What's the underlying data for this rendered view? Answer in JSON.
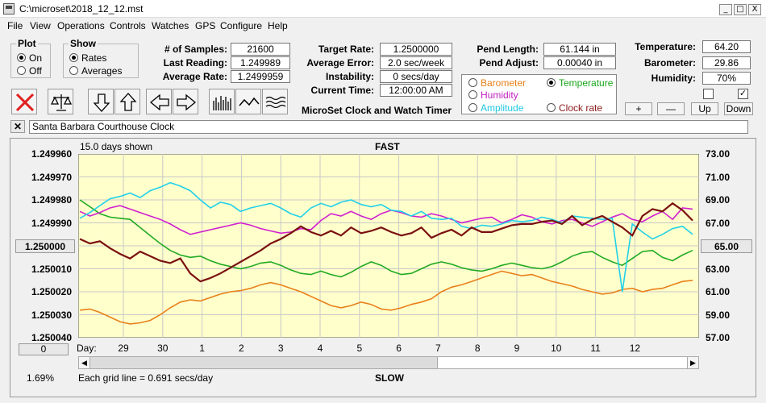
{
  "title": "C:\\microset\\2018_12_12.mst",
  "window_buttons": [
    "_",
    "□",
    "X"
  ],
  "menu": [
    "File",
    "View",
    "Operations",
    "Controls",
    "Watches",
    "GPS",
    "Configure",
    "Help"
  ],
  "plot_group": {
    "title": "Plot",
    "options": [
      {
        "label": "On",
        "checked": true
      },
      {
        "label": "Off",
        "checked": false
      }
    ]
  },
  "show_group": {
    "title": "Show",
    "options": [
      {
        "label": "Rates",
        "checked": true
      },
      {
        "label": "Averages",
        "checked": false
      }
    ]
  },
  "stats": [
    {
      "label": "# of Samples:",
      "value": "21600"
    },
    {
      "label": "Last Reading:",
      "value": "1.249989"
    },
    {
      "label": "Average Rate:",
      "value": "1.2499959"
    }
  ],
  "rates": [
    {
      "label": "Target Rate:",
      "value": "1.2500000"
    },
    {
      "label": "Average Error:",
      "value": "2.0 sec/week"
    },
    {
      "label": "Instability:",
      "value": "0 secs/day"
    },
    {
      "label": "Current Time:",
      "value": "12:00:00 AM"
    }
  ],
  "app_caption": "MicroSet Clock and Watch Timer",
  "pendulum": [
    {
      "label": "Pend Length:",
      "value": "61.144 in"
    },
    {
      "label": "Pend Adjust:",
      "value": "0.00040 in"
    }
  ],
  "sensor_radios": [
    {
      "label": "Barometer",
      "checked": false,
      "color": "#e8801a"
    },
    {
      "label": "Temperature",
      "checked": true,
      "color": "#1aa61a"
    },
    {
      "label": "Humidity",
      "checked": false,
      "color": "#c020c0"
    },
    {
      "label": "Clock rate",
      "checked": false,
      "color": "#8b1a1a"
    },
    {
      "label": "Amplitude",
      "checked": false,
      "color": "#20c8e0"
    }
  ],
  "env": [
    {
      "label": "Temperature:",
      "value": "64.20"
    },
    {
      "label": "Barometer:",
      "value": "29.86"
    },
    {
      "label": "Humidity:",
      "value": "70%"
    }
  ],
  "checkboxes": [
    {
      "checked": false
    },
    {
      "checked": true
    }
  ],
  "env_buttons": [
    "+",
    "—",
    "Up",
    "Down"
  ],
  "clock_name": "Santa Barbara Courthouse Clock",
  "chart_data": {
    "type": "line",
    "days_shown": "15.0 days shown",
    "top_label": "FAST",
    "bottom_label": "SLOW",
    "grid_note": "Each grid line = 0.691 secs/day",
    "percent": "1.69%",
    "x_prefix": "Day:",
    "x_ticks": [
      "29",
      "30",
      "1",
      "2",
      "3",
      "4",
      "5",
      "6",
      "7",
      "8",
      "9",
      "10",
      "11",
      "12"
    ],
    "left_axis": [
      "1.249960",
      "1.249970",
      "1.249980",
      "1.249990",
      "1.250000",
      "1.250010",
      "1.250020",
      "1.250030",
      "1.250040"
    ],
    "right_axis": [
      "73.00",
      "71.00",
      "69.00",
      "67.00",
      "65.00",
      "63.00",
      "61.00",
      "59.00",
      "57.00"
    ],
    "left_button": "0",
    "ylim_left": [
      1.24996,
      1.25004
    ],
    "ylim_right": [
      57,
      73
    ],
    "series": [
      {
        "name": "Barometer",
        "color": "#e8801a",
        "width": 1.6,
        "axis": "right",
        "values": [
          59.4,
          59.5,
          59.2,
          58.8,
          58.4,
          58.2,
          58.3,
          58.5,
          59.0,
          59.6,
          60.1,
          60.3,
          60.2,
          60.5,
          60.8,
          61.0,
          61.1,
          61.3,
          61.6,
          61.8,
          61.6,
          61.3,
          61.0,
          60.6,
          60.2,
          59.8,
          59.6,
          59.8,
          60.1,
          59.9,
          59.5,
          59.4,
          59.6,
          59.9,
          60.1,
          60.4,
          61.0,
          61.4,
          61.6,
          61.9,
          62.2,
          62.5,
          62.8,
          62.6,
          62.4,
          62.5,
          62.2,
          61.9,
          61.7,
          61.5,
          61.2,
          61.0,
          60.8,
          60.9,
          61.2,
          61.3,
          61.0,
          61.2,
          61.3,
          61.6,
          61.9,
          62.0
        ]
      },
      {
        "name": "Temperature",
        "color": "#22aa22",
        "width": 1.6,
        "axis": "right",
        "values": [
          69.0,
          68.4,
          67.8,
          67.5,
          67.4,
          67.3,
          66.6,
          65.9,
          65.2,
          64.6,
          64.2,
          64.0,
          64.1,
          63.7,
          63.4,
          63.2,
          63.0,
          63.2,
          63.5,
          63.6,
          63.3,
          62.9,
          62.6,
          62.5,
          62.8,
          62.5,
          62.3,
          62.7,
          63.2,
          63.6,
          63.3,
          62.8,
          62.5,
          62.6,
          63.0,
          63.4,
          63.6,
          63.4,
          63.1,
          62.9,
          62.8,
          63.0,
          63.3,
          63.5,
          63.3,
          63.1,
          63.0,
          63.2,
          63.6,
          64.1,
          64.4,
          64.5,
          64.0,
          63.6,
          63.3,
          63.9,
          64.5,
          64.6,
          64.0,
          63.7,
          64.2,
          64.6
        ]
      },
      {
        "name": "Humidity",
        "color": "#d020d0",
        "width": 1.6,
        "axis": "right",
        "values": [
          68.0,
          67.6,
          67.9,
          68.3,
          68.5,
          68.2,
          67.9,
          67.6,
          67.3,
          66.9,
          66.4,
          66.0,
          66.2,
          66.4,
          66.6,
          66.8,
          67.0,
          66.8,
          66.5,
          66.3,
          66.1,
          66.2,
          66.5,
          66.4,
          67.2,
          67.8,
          67.6,
          68.0,
          67.6,
          67.3,
          67.8,
          68.1,
          67.9,
          67.6,
          67.5,
          67.8,
          67.6,
          67.3,
          67.0,
          67.2,
          67.4,
          67.5,
          67.0,
          67.3,
          67.7,
          67.5,
          67.1,
          66.9,
          67.2,
          67.3,
          67.0,
          66.7,
          67.1,
          67.5,
          67.8,
          67.3,
          67.1,
          67.6,
          68.0,
          67.3,
          68.3,
          68.2
        ]
      },
      {
        "name": "Amplitude",
        "color": "#22d0e8",
        "width": 1.6,
        "axis": "right",
        "values": [
          67.4,
          67.9,
          68.5,
          69.1,
          69.3,
          69.6,
          69.2,
          69.8,
          70.1,
          70.5,
          70.2,
          69.8,
          69.0,
          68.3,
          68.8,
          68.6,
          68.0,
          68.3,
          68.5,
          68.7,
          68.3,
          67.8,
          67.5,
          68.3,
          68.7,
          68.4,
          68.8,
          69.0,
          68.6,
          68.4,
          68.6,
          68.1,
          68.0,
          67.6,
          68.0,
          67.4,
          67.3,
          67.4,
          66.7,
          66.5,
          66.8,
          66.7,
          66.9,
          67.2,
          67.1,
          67.2,
          67.5,
          67.3,
          67.0,
          67.6,
          67.5,
          67.4,
          67.3,
          67.4,
          61.0,
          66.9,
          66.2,
          65.6,
          66.0,
          66.5,
          66.7,
          66.0
        ]
      },
      {
        "name": "Clock rate",
        "color": "#7a1010",
        "width": 2.2,
        "axis": "right",
        "values": [
          65.6,
          65.2,
          65.4,
          64.8,
          64.3,
          63.9,
          64.5,
          64.1,
          63.7,
          63.5,
          63.9,
          62.6,
          61.9,
          62.2,
          62.6,
          63.1,
          63.6,
          64.1,
          64.6,
          65.2,
          65.6,
          66.1,
          66.7,
          66.2,
          65.9,
          66.3,
          65.9,
          66.6,
          66.1,
          66.3,
          66.6,
          66.2,
          65.9,
          66.1,
          66.6,
          65.7,
          66.1,
          66.4,
          65.9,
          66.6,
          66.2,
          66.2,
          66.5,
          66.8,
          66.9,
          66.9,
          67.1,
          67.2,
          66.9,
          67.6,
          66.8,
          67.3,
          67.6,
          67.1,
          66.6,
          65.9,
          67.6,
          68.2,
          68.0,
          68.7,
          68.1,
          67.2
        ]
      }
    ]
  }
}
